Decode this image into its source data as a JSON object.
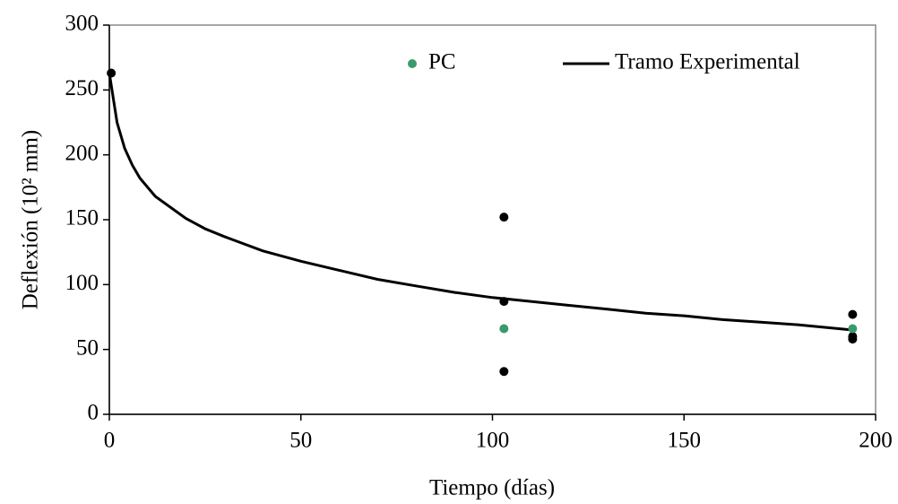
{
  "chart_data": {
    "type": "scatter",
    "xlabel": "Tiempo (días)",
    "ylabel": "Deflexión (10² mm)",
    "xlim": [
      0,
      200
    ],
    "xticks": [
      0,
      50,
      100,
      150,
      200
    ],
    "ylim": [
      0,
      300
    ],
    "yticks": [
      0,
      50,
      100,
      150,
      200,
      250,
      300
    ],
    "legend": "top-right",
    "series": [
      {
        "name": "PC",
        "color": "#3a9a6e",
        "mode": "markers",
        "x": [
          103,
          194
        ],
        "values": [
          66,
          66
        ]
      },
      {
        "color": "#000000",
        "mode": "markers",
        "x": [
          0.5,
          103,
          103,
          103,
          194,
          194,
          194
        ],
        "values": [
          263,
          152,
          87,
          33,
          77,
          60,
          58
        ]
      },
      {
        "name": "Tramo Experimental",
        "color": "#000000",
        "mode": "line",
        "x": [
          0,
          2,
          4,
          6,
          8,
          12,
          20,
          25,
          30,
          40,
          50,
          60,
          70,
          80,
          90,
          100,
          110,
          120,
          130,
          140,
          150,
          160,
          170,
          180,
          194
        ],
        "values": [
          263,
          225,
          205,
          192,
          182,
          168,
          151,
          143,
          137,
          126,
          118,
          111,
          104,
          99,
          94,
          90,
          87,
          84,
          81,
          78,
          76,
          73,
          71,
          69,
          65
        ]
      }
    ]
  }
}
